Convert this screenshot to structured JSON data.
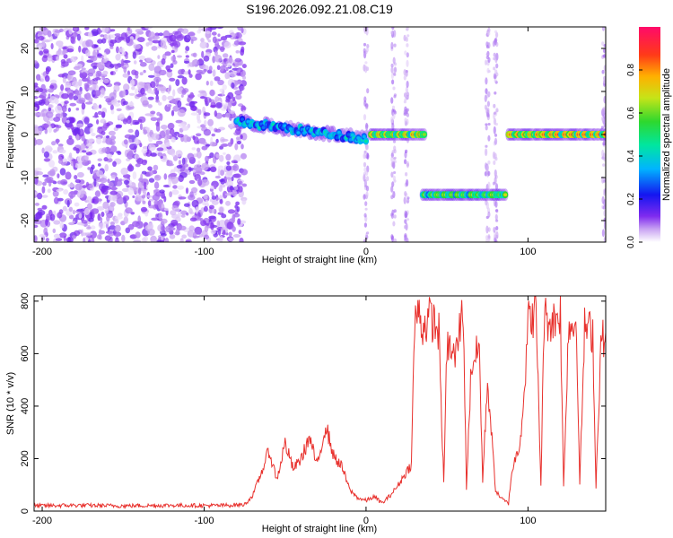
{
  "title": "S196.2026.092.21.08.C19",
  "chart_data": [
    {
      "type": "heatmap",
      "xlabel": "Height of straight line (km)",
      "ylabel": "Frequency (Hz)",
      "xlim": [
        -205,
        148
      ],
      "ylim": [
        -25,
        25
      ],
      "xticks": [
        -200,
        -100,
        0,
        100
      ],
      "yticks": [
        20,
        10,
        0,
        -10,
        -20
      ],
      "colorbar": {
        "label": "Normalized spectral amplitude",
        "range": [
          0,
          1
        ],
        "ticks": [
          "0.0",
          "0.2",
          "0.4",
          "0.6",
          "0.8"
        ]
      },
      "segments": [
        {
          "x_start": -80,
          "x_end": 0,
          "freq_start": 3,
          "freq_end": -1,
          "peak_amplitude": 0.45
        },
        {
          "x_start": 3,
          "x_end": 36,
          "freq_start": 0,
          "freq_end": 0,
          "peak_amplitude": 0.85
        },
        {
          "x_start": 35,
          "x_end": 86,
          "freq_start": -14,
          "freq_end": -14,
          "peak_amplitude": 0.7
        },
        {
          "x_start": 88,
          "x_end": 148,
          "freq_start": 0,
          "freq_end": 0,
          "peak_amplitude": 0.95
        }
      ],
      "noise_region": {
        "x_start": -205,
        "x_end": -75,
        "max_amplitude": 0.12
      }
    },
    {
      "type": "line",
      "xlabel": "Height of straight line (km)",
      "ylabel": "SNR (10 * v/v)",
      "xlim": [
        -205,
        148
      ],
      "ylim": [
        0,
        820
      ],
      "xticks": [
        -200,
        -100,
        0,
        100
      ],
      "yticks": [
        0,
        200,
        400,
        600,
        800
      ],
      "color": "#e8302c",
      "series": [
        {
          "name": "SNR",
          "x": [
            -205,
            -180,
            -150,
            -120,
            -90,
            -75,
            -70,
            -65,
            -60,
            -55,
            -50,
            -45,
            -40,
            -35,
            -30,
            -25,
            -20,
            -15,
            -10,
            -5,
            0,
            5,
            10,
            15,
            20,
            24,
            28,
            30,
            32,
            35,
            40,
            45,
            48,
            50,
            55,
            60,
            62,
            65,
            70,
            72,
            75,
            80,
            82,
            85,
            88,
            90,
            95,
            98,
            100,
            105,
            108,
            110,
            115,
            120,
            122,
            125,
            130,
            132,
            135,
            140,
            142,
            145,
            148
          ],
          "y": [
            20,
            22,
            20,
            22,
            21,
            25,
            60,
            140,
            230,
            120,
            260,
            160,
            200,
            280,
            170,
            330,
            210,
            170,
            80,
            50,
            40,
            55,
            30,
            60,
            100,
            140,
            180,
            720,
            760,
            700,
            740,
            680,
            100,
            640,
            580,
            780,
            90,
            560,
            620,
            110,
            500,
            80,
            60,
            40,
            30,
            150,
            260,
            480,
            720,
            760,
            100,
            740,
            720,
            760,
            90,
            700,
            720,
            100,
            700,
            680,
            90,
            640,
            680
          ]
        }
      ]
    }
  ]
}
